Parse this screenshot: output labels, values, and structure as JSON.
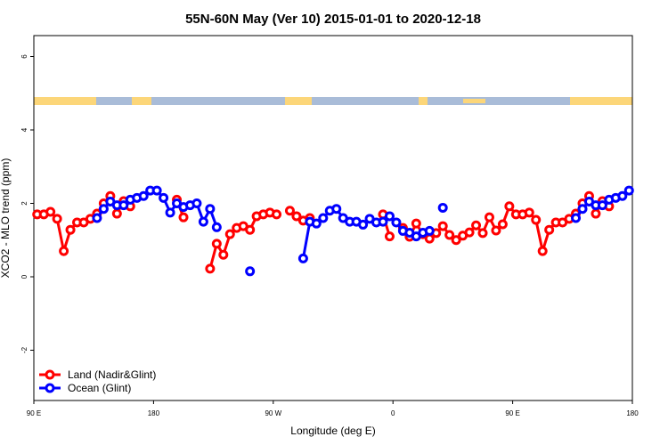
{
  "chart_data": {
    "type": "line",
    "title": "55N-60N May (Ver 10)   2015-01-01 to 2020-12-18",
    "x_label": "Longitude (deg E)",
    "y_label": "XCO2 - MLO trend (ppm)",
    "x": [
      92.5,
      97.5,
      102.5,
      107.5,
      112.5,
      117.5,
      122.5,
      127.5,
      132.5,
      137.5,
      142.5,
      147.5,
      152.5,
      157.5,
      162.5,
      167.5,
      172.5,
      177.5,
      182.5,
      187.5,
      192.5,
      197.5,
      202.5,
      207.5,
      212.5,
      217.5,
      222.5,
      227.5,
      232.5,
      237.5,
      242.5,
      247.5,
      252.5,
      257.5,
      262.5,
      267.5,
      272.5,
      277.5,
      282.5,
      287.5,
      292.5,
      297.5,
      302.5,
      307.5,
      312.5,
      317.5,
      322.5,
      327.5,
      332.5,
      337.5,
      342.5,
      347.5,
      352.5,
      357.5,
      362.5,
      367.5,
      372.5,
      377.5,
      382.5,
      387.5,
      392.5,
      397.5,
      402.5,
      407.5,
      412.5,
      417.5,
      422.5,
      427.5,
      432.5,
      437.5,
      442.5,
      447.5,
      452.5,
      457.5,
      462.5,
      467.5,
      472.5,
      477.5,
      482.5,
      487.5,
      492.5,
      497.5,
      502.5,
      507.5,
      512.5,
      517.5,
      522.5,
      527.5,
      532.5,
      537.5
    ],
    "series": [
      {
        "name": "Land (Nadir&Glint)",
        "color": "#ff0000",
        "values": [
          1.7,
          1.7,
          1.77,
          1.58,
          0.7,
          1.28,
          1.48,
          1.48,
          1.58,
          1.72,
          2.0,
          2.2,
          1.72,
          2.06,
          1.92,
          null,
          null,
          null,
          null,
          null,
          null,
          2.1,
          1.62,
          null,
          null,
          null,
          0.22,
          0.9,
          0.6,
          1.16,
          1.33,
          1.38,
          1.28,
          1.65,
          1.7,
          1.75,
          1.7,
          null,
          1.8,
          1.65,
          1.53,
          1.6,
          null,
          null,
          null,
          null,
          null,
          null,
          null,
          null,
          null,
          null,
          1.7,
          1.1,
          null,
          1.33,
          1.09,
          1.45,
          1.16,
          1.04,
          1.19,
          1.38,
          1.14,
          1.0,
          1.12,
          1.21,
          1.4,
          1.19,
          1.62,
          1.26,
          1.43,
          1.92,
          1.7,
          1.7,
          1.75,
          1.55,
          0.7,
          1.28,
          1.48,
          1.48,
          1.58,
          1.72,
          2.0,
          2.2,
          1.72,
          2.06,
          1.92,
          null,
          null,
          null
        ]
      },
      {
        "name": "Ocean (Glint)",
        "color": "#0000ff",
        "values": [
          null,
          null,
          null,
          null,
          null,
          null,
          null,
          null,
          null,
          1.6,
          1.85,
          2.05,
          1.95,
          1.95,
          2.1,
          2.15,
          2.2,
          2.35,
          2.35,
          2.15,
          1.75,
          2.0,
          1.9,
          1.95,
          2.0,
          1.5,
          1.85,
          1.35,
          null,
          null,
          null,
          null,
          0.15,
          null,
          null,
          null,
          null,
          null,
          null,
          null,
          0.5,
          1.5,
          1.45,
          1.6,
          1.8,
          1.85,
          1.6,
          1.5,
          1.5,
          1.42,
          1.58,
          1.48,
          1.5,
          1.65,
          1.48,
          1.25,
          1.2,
          1.1,
          1.2,
          1.25,
          null,
          1.88,
          null,
          null,
          null,
          null,
          null,
          null,
          null,
          null,
          null,
          null,
          null,
          null,
          null,
          null,
          null,
          null,
          null,
          null,
          null,
          1.6,
          1.85,
          2.05,
          1.95,
          1.95,
          2.1,
          2.15,
          2.2,
          2.35
        ]
      }
    ],
    "xlim": [
      90,
      540
    ],
    "xticks": [
      {
        "value": 90,
        "label": "90 E"
      },
      180,
      {
        "value": 270,
        "label": "90 W"
      },
      {
        "value": 360,
        "label": "0"
      },
      {
        "value": 450,
        "label": "90 E"
      },
      {
        "value": 540,
        "label": "180"
      }
    ],
    "ylim": [
      -3.37,
      6.57
    ],
    "yticks": [
      -2,
      0,
      2,
      4,
      6
    ],
    "legend": "bottom-left"
  }
}
